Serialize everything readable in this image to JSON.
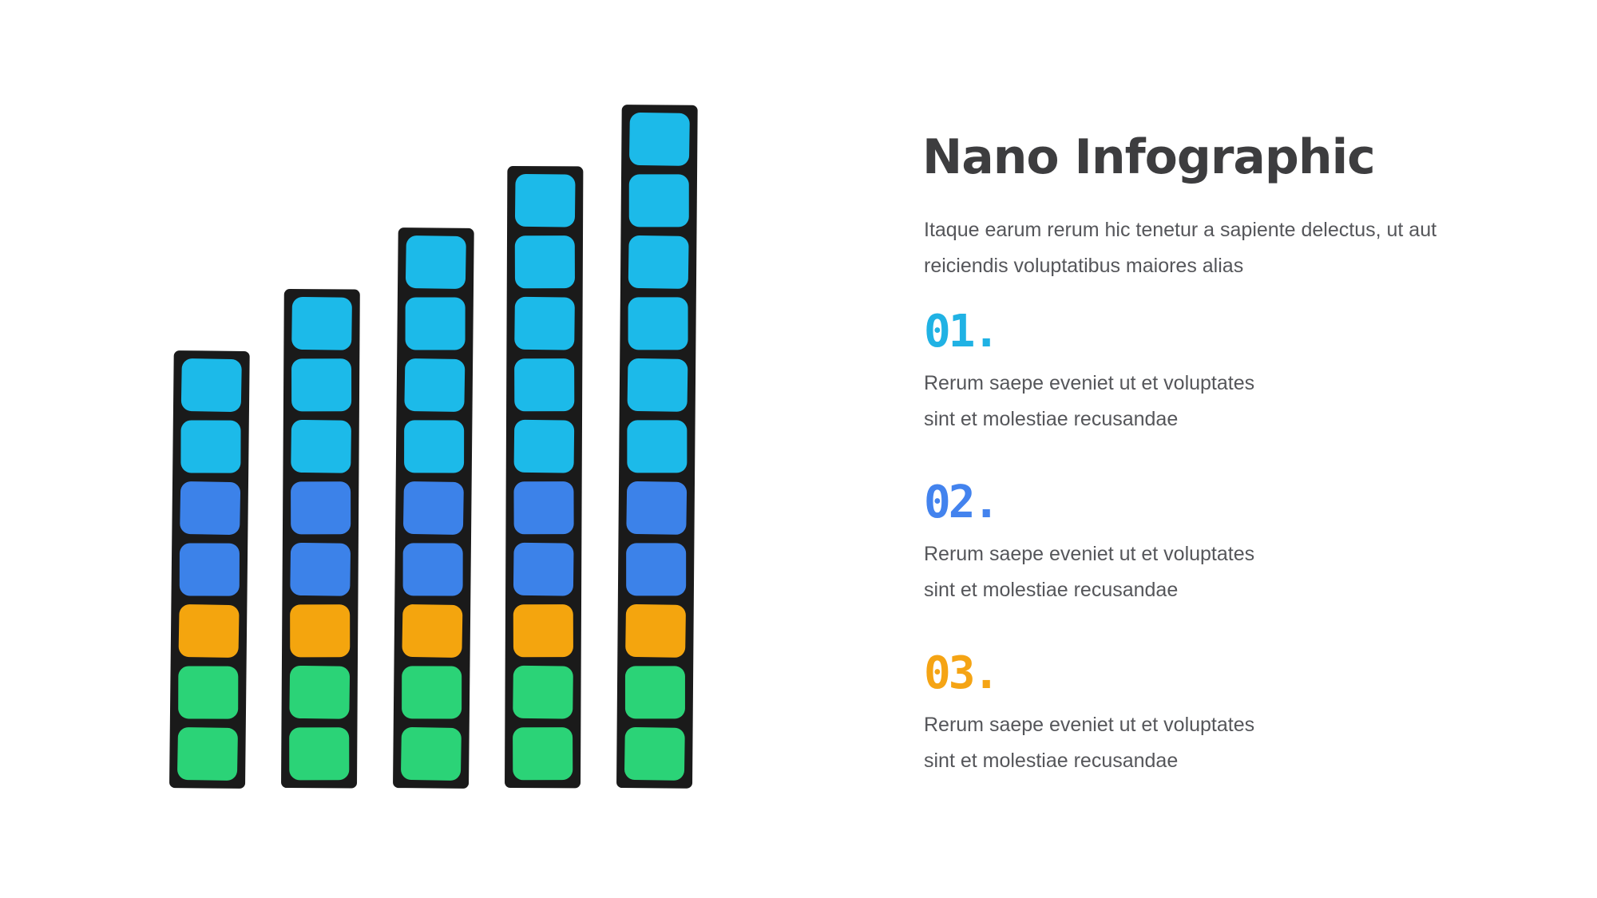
{
  "slide": {
    "title": "Nano Infographic",
    "subtitle_lines": [
      "Itaque earum rerum hic tenetur a sapiente delectus, ut aut",
      "reiciendis voluptatibus maiores alias"
    ],
    "sections": [
      {
        "number": "01.",
        "color": "#20b2e4",
        "lines": [
          "Rerum saepe eveniet ut et voluptates",
          "sint et molestiae recusandae"
        ]
      },
      {
        "number": "02.",
        "color": "#4383ee",
        "lines": [
          "Rerum saepe eveniet ut et voluptates",
          "sint et molestiae recusandae"
        ]
      },
      {
        "number": "03.",
        "color": "#f5a414",
        "lines": [
          "Rerum saepe eveniet ut et voluptates",
          "sint et molestiae recusandae"
        ]
      }
    ]
  },
  "chart_data": {
    "type": "bar",
    "subtype": "stacked-block-columns",
    "title": "",
    "xlabel": "",
    "ylabel": "",
    "axes": "none",
    "grid": false,
    "legend_position": "none",
    "categories": [
      "bar-1",
      "bar-2",
      "bar-3",
      "bar-4",
      "bar-5"
    ],
    "totals_blocks": [
      7,
      8,
      9,
      10,
      11
    ],
    "series_order": "top-to-bottom",
    "series": [
      {
        "name": "cyan",
        "color": "#1cbae9",
        "values": [
          2,
          3,
          4,
          5,
          6
        ]
      },
      {
        "name": "blue",
        "color": "#3c82e9",
        "values": [
          2,
          2,
          2,
          2,
          2
        ]
      },
      {
        "name": "orange",
        "color": "#f4a50e",
        "values": [
          1,
          1,
          1,
          1,
          1
        ]
      },
      {
        "name": "green",
        "color": "#2bd377",
        "values": [
          2,
          2,
          2,
          2,
          2
        ]
      }
    ],
    "frame_color": "#1a1a1a"
  }
}
